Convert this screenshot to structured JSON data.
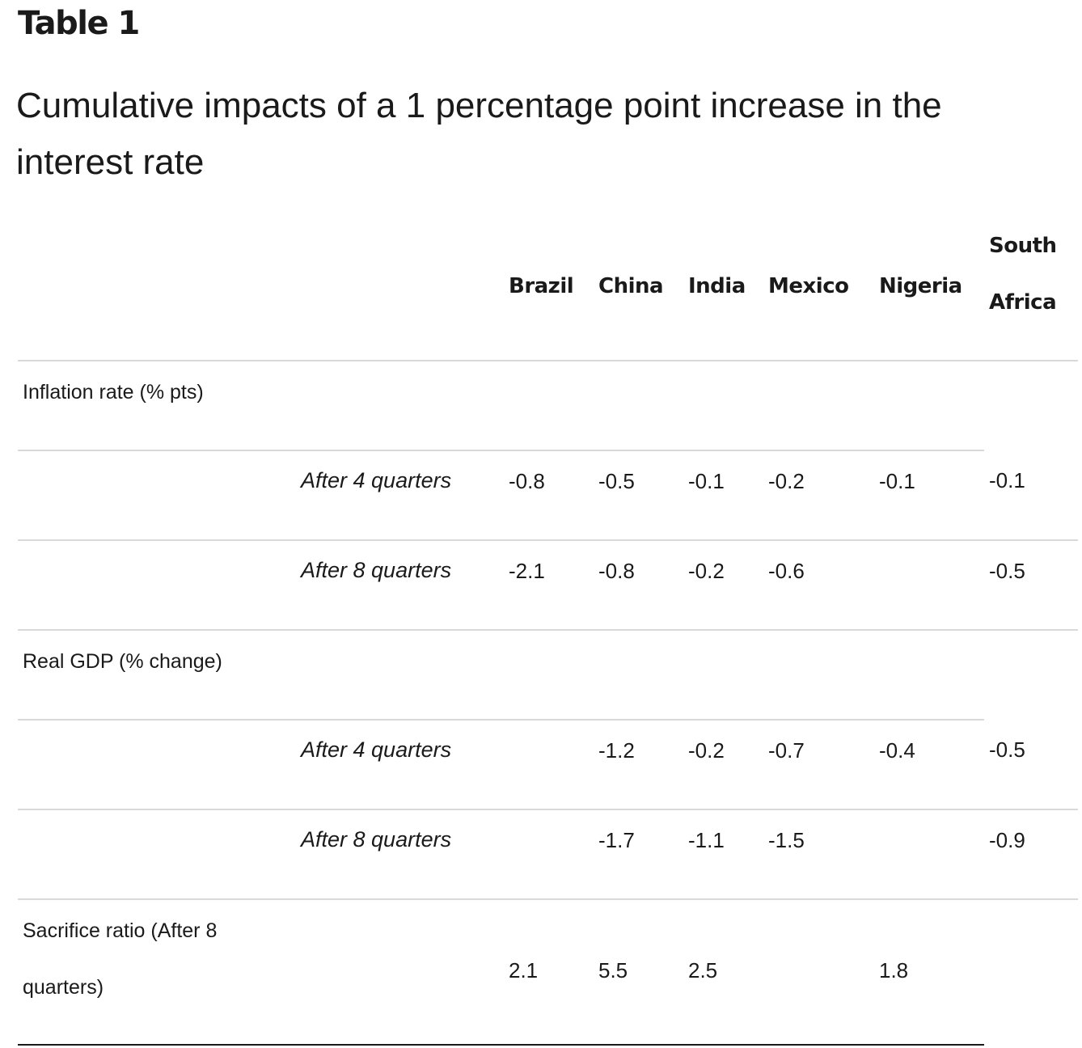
{
  "title": "Table 1",
  "subtitle": "Cumulative impacts of a 1 percentage point increase in the interest rate",
  "columns": [
    "Brazil",
    "China",
    "India",
    "Mexico",
    "Nigeria",
    "South Africa"
  ],
  "sections": [
    {
      "label": "Inflation rate (% pts)",
      "rows": [
        {
          "label": "After 4 quarters",
          "values": [
            "-0.8",
            "-0.5",
            "-0.1",
            "-0.2",
            "-0.1",
            "-0.1"
          ]
        },
        {
          "label": "After 8 quarters",
          "values": [
            "-2.1",
            "-0.8",
            "-0.2",
            "-0.6",
            "",
            "-0.5"
          ]
        }
      ]
    },
    {
      "label": "Real GDP (% change)",
      "rows": [
        {
          "label": "After 4 quarters",
          "values": [
            "",
            "-1.2",
            "-0.2",
            "-0.7",
            "-0.4",
            "-0.5"
          ]
        },
        {
          "label": "After 8 quarters",
          "values": [
            "",
            "-1.7",
            "-1.1",
            "-1.5",
            "",
            "-0.9"
          ]
        }
      ]
    },
    {
      "label": "Sacrifice ratio (After 8 quarters)",
      "rows": [
        {
          "label": "",
          "values": [
            "2.1",
            "5.5",
            "2.5",
            "",
            "1.8",
            ""
          ]
        }
      ]
    }
  ]
}
